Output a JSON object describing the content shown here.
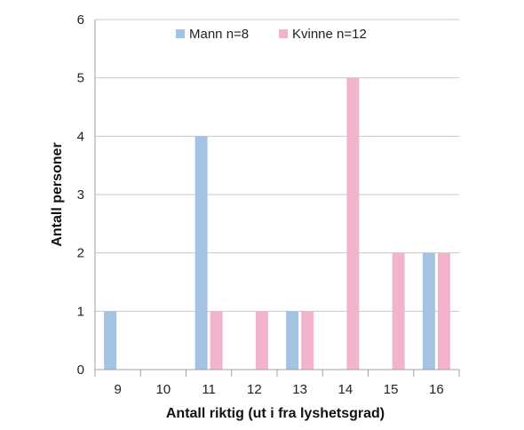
{
  "chart_data": {
    "type": "bar",
    "title": "",
    "xlabel": "Antall riktig (ut i fra lyshetsgrad)",
    "ylabel": "Antall personer",
    "categories": [
      "9",
      "10",
      "11",
      "12",
      "13",
      "14",
      "15",
      "16"
    ],
    "ylim": [
      0,
      6
    ],
    "yticks": [
      "0",
      "1",
      "2",
      "3",
      "4",
      "5",
      "6"
    ],
    "grid": true,
    "legend_position": "top-center",
    "series": [
      {
        "name": "Mann n=8",
        "color": "#a4c2e4",
        "values": [
          1,
          0,
          4,
          0,
          1,
          0,
          0,
          2
        ]
      },
      {
        "name": "Kvinne n=12",
        "color": "#f2b3cd",
        "values": [
          0,
          0,
          1,
          1,
          1,
          5,
          2,
          2
        ]
      }
    ]
  }
}
